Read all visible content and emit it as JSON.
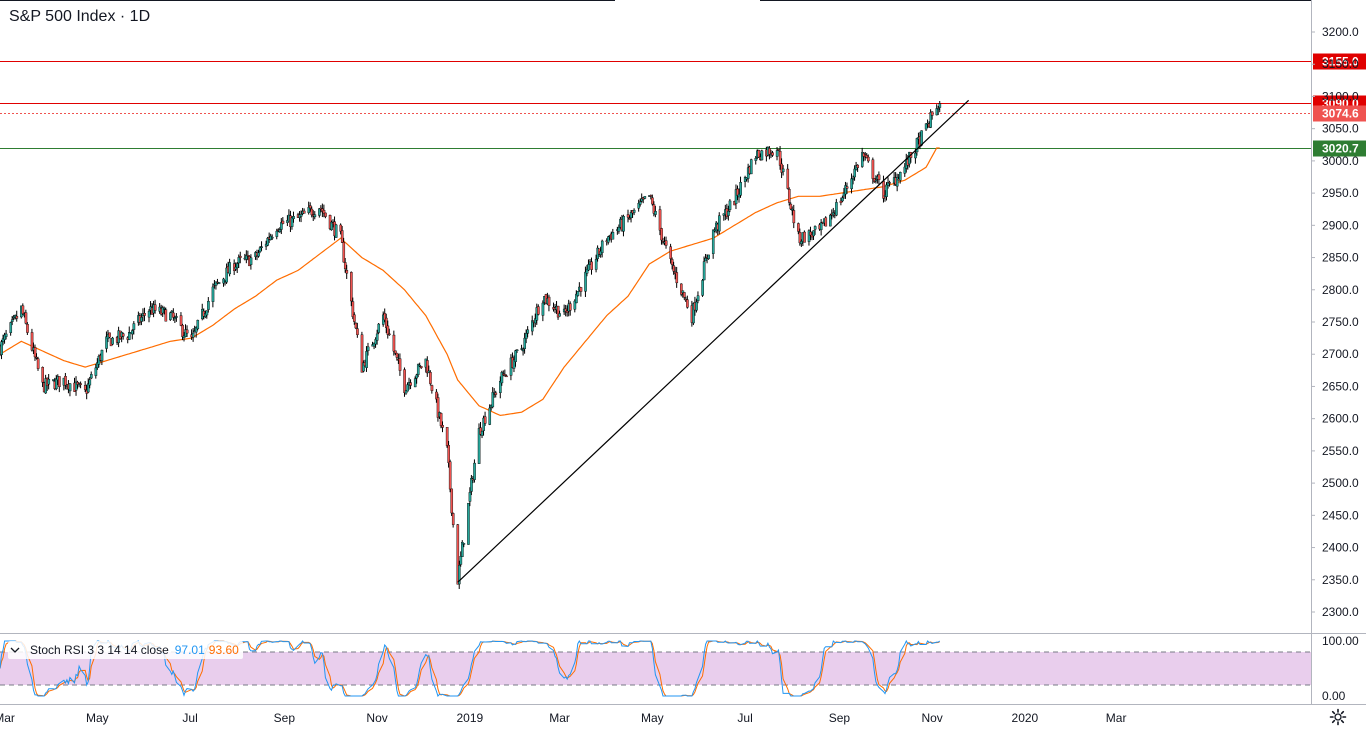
{
  "header": {
    "title": "S&P 500 Index · 1D"
  },
  "colors": {
    "up": "#26a69a",
    "down": "#ef5350",
    "candle_border": "#000000",
    "ma": "#ff6d00",
    "trendline": "#000000",
    "stoch_k": "#2196f3",
    "stoch_d": "#ff6d00",
    "stoch_band": "#e1bee7",
    "resistance": "#e00000",
    "support": "#2e7d32",
    "last_price": "#ef5350"
  },
  "levels": [
    {
      "value": 3155.0,
      "label": "3155.0",
      "color": "#e00000",
      "style": "solid"
    },
    {
      "value": 3090.0,
      "label": "3090.0",
      "color": "#e00000",
      "style": "solid"
    },
    {
      "value": 3074.6,
      "label": "3074.6",
      "color": "#ef5350",
      "style": "dotted"
    },
    {
      "value": 3020.7,
      "label": "3020.7",
      "color": "#2e7d32",
      "style": "solid"
    }
  ],
  "price_axis": {
    "ticks": [
      "2300.0",
      "2350.0",
      "2400.0",
      "2450.0",
      "2500.0",
      "2550.0",
      "2600.0",
      "2650.0",
      "2700.0",
      "2750.0",
      "2800.0",
      "2850.0",
      "2900.0",
      "2950.0",
      "3000.0",
      "3050.0",
      "3100.0",
      "3150.0",
      "3200.0"
    ]
  },
  "time_axis": {
    "labels": [
      "Mar",
      "May",
      "Jul",
      "Sep",
      "Nov",
      "2019",
      "Mar",
      "May",
      "Jul",
      "Sep",
      "Nov",
      "2020",
      "Mar"
    ]
  },
  "oscillator": {
    "name": "Stoch RSI 3 3 14 14 close",
    "k_value": "97.01",
    "d_value": "93.60",
    "axis_ticks": [
      "100.00",
      "0.00"
    ],
    "upper_band": 80,
    "lower_band": 20
  },
  "chart_data": {
    "type": "line",
    "title": "S&P 500 Index · 1D",
    "x": [
      "2018-02-26",
      "2018-03-12",
      "2018-03-26",
      "2018-04-09",
      "2018-04-23",
      "2018-05-07",
      "2018-05-21",
      "2018-06-04",
      "2018-06-18",
      "2018-07-02",
      "2018-07-16",
      "2018-07-30",
      "2018-08-13",
      "2018-08-27",
      "2018-09-10",
      "2018-09-24",
      "2018-10-08",
      "2018-10-22",
      "2018-11-05",
      "2018-11-19",
      "2018-12-03",
      "2018-12-17",
      "2018-12-24",
      "2019-01-07",
      "2019-01-21",
      "2019-02-04",
      "2019-02-18",
      "2019-03-04",
      "2019-03-18",
      "2019-04-01",
      "2019-04-15",
      "2019-04-29",
      "2019-05-13",
      "2019-05-27",
      "2019-06-10",
      "2019-06-24",
      "2019-07-08",
      "2019-07-22",
      "2019-08-05",
      "2019-08-19",
      "2019-09-02",
      "2019-09-16",
      "2019-09-30",
      "2019-10-14",
      "2019-10-28",
      "2019-11-04"
    ],
    "series": [
      {
        "values": [
          2710,
          2770,
          2650,
          2660,
          2640,
          2720,
          2730,
          2770,
          2760,
          2720,
          2800,
          2840,
          2850,
          2900,
          2910,
          2930,
          2880,
          2680,
          2760,
          2650,
          2690,
          2550,
          2350,
          2580,
          2660,
          2710,
          2790,
          2760,
          2820,
          2880,
          2910,
          2945,
          2840,
          2760,
          2890,
          2940,
          3010,
          3020,
          2880,
          2890,
          2940,
          3010,
          2950,
          2990,
          3050,
          3085
        ]
      },
      {
        "values": [
          2700,
          2720,
          2705,
          2690,
          2680,
          2690,
          2700,
          2710,
          2720,
          2725,
          2745,
          2770,
          2790,
          2815,
          2830,
          2855,
          2880,
          2850,
          2830,
          2800,
          2760,
          2700,
          2660,
          2620,
          2605,
          2610,
          2630,
          2680,
          2720,
          2760,
          2790,
          2840,
          2860,
          2870,
          2880,
          2900,
          2920,
          2935,
          2945,
          2945,
          2950,
          2955,
          2960,
          2970,
          2990,
          3020
        ]
      }
    ],
    "ylim": [
      2280,
      3250
    ],
    "levels": [
      3155.0,
      3090.0,
      3074.6,
      3020.7
    ],
    "trendline": [
      {
        "x": "2018-12-24",
        "y": 2346
      },
      {
        "x": "2019-11-25",
        "y": 3094
      }
    ]
  }
}
